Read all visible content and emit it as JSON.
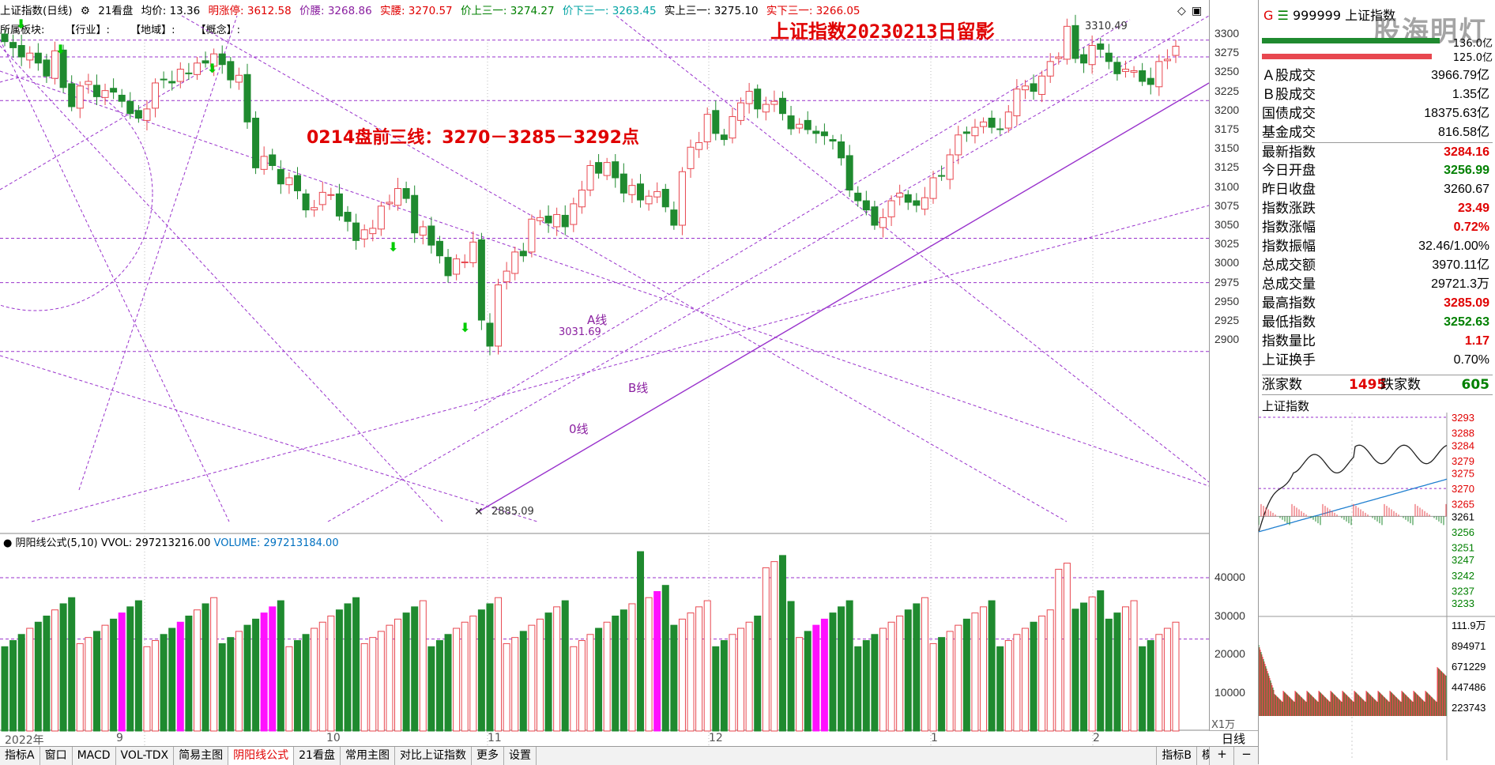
{
  "window": {
    "title": "上证指数(日线)"
  },
  "infobar": {
    "period_tab": "21看盘",
    "avg_label": "均价: 13.36",
    "limit_up": "明涨停: 3612.58",
    "price_waist": "价腰: 3268.86",
    "real_waist": "实腰: 3270.57",
    "price_upper": "价上三一: 3274.27",
    "price_lower": "价下三一: 3263.45",
    "real_upper": "实上三一: 3275.10",
    "real_lower": "实下三一: 3266.05"
  },
  "sectorbar": {
    "label": "所属板块:",
    "industry": "【行业】:",
    "region": "【地域】:",
    "concept": "【概念】:"
  },
  "annotations": {
    "headline": "上证指数20230213日留影",
    "premarket": "0214盘前三线：3270－3285－3292点",
    "line_a": "A线",
    "line_b": "B线",
    "line_o": "0线",
    "high_mark": "3310.49",
    "low_mark": "2885.09",
    "mid_mark": "3031.69"
  },
  "price_axis": [
    "3300",
    "3275",
    "3250",
    "3225",
    "3200",
    "3175",
    "3150",
    "3125",
    "3100",
    "3075",
    "3050",
    "3025",
    "3000",
    "2975",
    "2950",
    "2925",
    "2900"
  ],
  "volume_indicator": {
    "name": "阴阳线公式(5,10)",
    "vvol": "VVOL: 297213216.00",
    "volume": "VOLUME: 297213184.00",
    "axis": [
      "40000",
      "30000",
      "20000",
      "10000"
    ],
    "unit": "X1万"
  },
  "x_axis": [
    "2022年",
    "9",
    "10",
    "11",
    "12",
    "1",
    "2"
  ],
  "tabs": [
    "指标A",
    "窗口",
    "MACD",
    "VOL-TDX",
    "简易主图",
    "阴阳线公式",
    "21看盘",
    "常用主图",
    "对比上证指数",
    "更多",
    "设置",
    "指标B",
    "模板"
  ],
  "tabs_active": "阴阳线公式",
  "tabs_right": {
    "period": "日线",
    "plus": "+",
    "minus": "−"
  },
  "right_panel": {
    "code": "999999",
    "name": "上证指数",
    "watermark": "股海明灯",
    "bar_top_value": "136.0亿",
    "bar_bottom_value": "125.0亿",
    "stats": [
      {
        "label": "Ａ股成交",
        "value": "3966.79亿",
        "color": "#000000"
      },
      {
        "label": "Ｂ股成交",
        "value": "1.35亿",
        "color": "#000000"
      },
      {
        "label": "国债成交",
        "value": "18375.63亿",
        "color": "#000000"
      },
      {
        "label": "基金成交",
        "value": "816.58亿",
        "color": "#000000"
      },
      {
        "label": "最新指数",
        "value": "3284.16",
        "color": "#e00000"
      },
      {
        "label": "今日开盘",
        "value": "3256.99",
        "color": "#008000"
      },
      {
        "label": "昨日收盘",
        "value": "3260.67",
        "color": "#000000"
      },
      {
        "label": "指数涨跌",
        "value": "23.49",
        "color": "#e00000"
      },
      {
        "label": "指数涨幅",
        "value": "0.72%",
        "color": "#e00000"
      },
      {
        "label": "指数振幅",
        "value": "32.46/1.00%",
        "color": "#000000"
      },
      {
        "label": "总成交额",
        "value": "3970.11亿",
        "color": "#000000"
      },
      {
        "label": "总成交量",
        "value": "29721.3万",
        "color": "#000000"
      },
      {
        "label": "最高指数",
        "value": "3285.09",
        "color": "#e00000"
      },
      {
        "label": "最低指数",
        "value": "3252.63",
        "color": "#008000"
      },
      {
        "label": "指数量比",
        "value": "1.17",
        "color": "#e00000"
      },
      {
        "label": "上证换手",
        "value": "0.70%",
        "color": "#000000"
      }
    ],
    "breadth": {
      "up_label": "涨家数",
      "up": "1495",
      "down_label": "跌家数",
      "down": "605"
    },
    "intraday_title": "上证指数",
    "intraday_axis": [
      "3293",
      "3288",
      "3284",
      "3279",
      "3275",
      "3270",
      "3265",
      "3261",
      "3256",
      "3251",
      "3247",
      "3242",
      "3237",
      "3233"
    ],
    "intraday_vol_axis": [
      "111.9万",
      "894971",
      "671229",
      "447486",
      "223743"
    ]
  },
  "colors": {
    "up": "#e8474f",
    "down": "#1f8a2f",
    "magenta": "#ff10ff",
    "guide": "#9932cc",
    "accent": "#e00000"
  }
}
